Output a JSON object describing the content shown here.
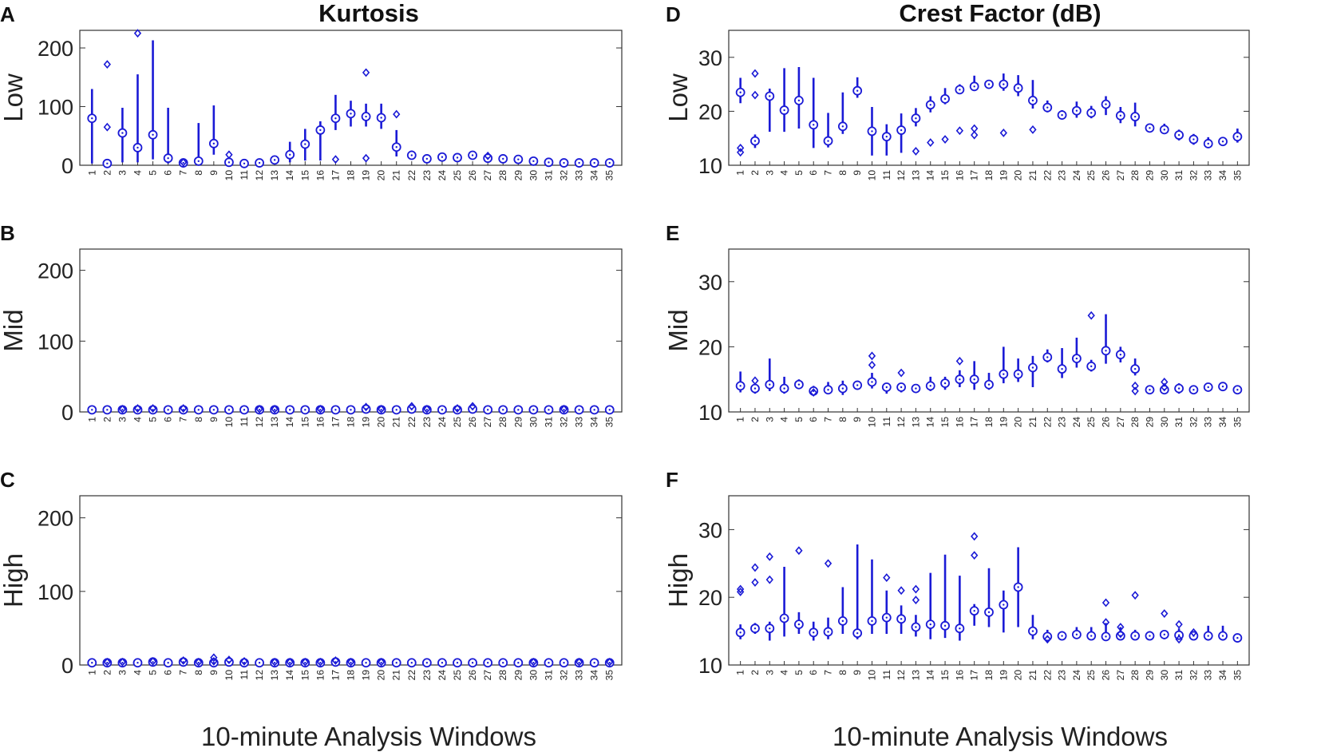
{
  "figure": {
    "xlabel": "10-minute Analysis Windows",
    "mark_color": "#1a1ad6"
  },
  "columns": [
    {
      "title": "Kurtosis"
    },
    {
      "title": "Crest Factor (dB)"
    }
  ],
  "chart_data": [
    {
      "panel": "A",
      "type": "scatter",
      "variant": "boxplot-median-whisker-outlier",
      "column_title": "Kurtosis",
      "ylabel": "Low",
      "xlabel": "",
      "ylim": [
        0,
        230
      ],
      "yticks": [
        0,
        100,
        200
      ],
      "categories": [
        "1",
        "2",
        "3",
        "4",
        "5",
        "6",
        "7",
        "8",
        "9",
        "10",
        "11",
        "12",
        "13",
        "14",
        "15",
        "16",
        "17",
        "18",
        "19",
        "20",
        "21",
        "22",
        "23",
        "24",
        "25",
        "26",
        "27",
        "28",
        "29",
        "30",
        "31",
        "32",
        "33",
        "34",
        "35"
      ],
      "median": [
        80,
        3,
        55,
        30,
        52,
        12,
        4,
        7,
        37,
        5,
        3,
        4,
        9,
        18,
        36,
        60,
        80,
        88,
        83,
        81,
        31,
        17,
        11,
        14,
        13,
        17,
        12,
        11,
        10,
        7,
        5,
        4,
        4,
        4,
        4
      ],
      "whisker_low": [
        3,
        2,
        5,
        5,
        10,
        3,
        2,
        2,
        18,
        2,
        2,
        2,
        5,
        5,
        8,
        8,
        60,
        66,
        66,
        62,
        15,
        10,
        8,
        10,
        10,
        12,
        8,
        8,
        7,
        5,
        3,
        3,
        3,
        3,
        3
      ],
      "whisker_high": [
        130,
        6,
        98,
        155,
        213,
        98,
        6,
        72,
        102,
        10,
        6,
        6,
        14,
        40,
        62,
        75,
        120,
        110,
        105,
        105,
        60,
        25,
        15,
        19,
        18,
        22,
        17,
        15,
        13,
        10,
        7,
        6,
        6,
        6,
        6
      ],
      "outliers": [
        [],
        [
          65,
          172
        ],
        [],
        [
          225
        ],
        [],
        [],
        [
          5
        ],
        [],
        [],
        [
          18
        ],
        [],
        [],
        [],
        [],
        [],
        [],
        [
          10
        ],
        [],
        [
          158,
          12
        ],
        [],
        [
          87
        ],
        [],
        [],
        [],
        [],
        [],
        [
          16
        ],
        [],
        [],
        [],
        [],
        [],
        [],
        [],
        []
      ]
    },
    {
      "panel": "B",
      "type": "scatter",
      "variant": "boxplot-median-whisker-outlier",
      "column_title": "Kurtosis",
      "ylabel": "Mid",
      "xlabel": "",
      "ylim": [
        0,
        230
      ],
      "yticks": [
        0,
        100,
        200
      ],
      "categories": [
        "1",
        "2",
        "3",
        "4",
        "5",
        "6",
        "7",
        "8",
        "9",
        "10",
        "11",
        "12",
        "13",
        "14",
        "15",
        "16",
        "17",
        "18",
        "19",
        "20",
        "21",
        "22",
        "23",
        "24",
        "25",
        "26",
        "27",
        "28",
        "29",
        "30",
        "31",
        "32",
        "33",
        "34",
        "35"
      ],
      "median": [
        3,
        3,
        3,
        3,
        3,
        3,
        3,
        3,
        3,
        3,
        3,
        3,
        3,
        3,
        3,
        3,
        3,
        3,
        4,
        3,
        3,
        4,
        3,
        3,
        3,
        4,
        3,
        3,
        3,
        3,
        3,
        3,
        3,
        3,
        3
      ],
      "whisker_low": [
        2,
        2,
        2,
        2,
        2,
        2,
        2,
        2,
        2,
        2,
        2,
        2,
        2,
        2,
        2,
        2,
        2,
        2,
        2,
        2,
        2,
        2,
        2,
        2,
        2,
        2,
        2,
        2,
        2,
        2,
        2,
        2,
        2,
        2,
        2
      ],
      "whisker_high": [
        4,
        4,
        6,
        7,
        6,
        4,
        6,
        4,
        4,
        4,
        4,
        5,
        5,
        4,
        4,
        5,
        4,
        4,
        7,
        5,
        4,
        6,
        5,
        5,
        6,
        8,
        5,
        4,
        4,
        4,
        4,
        5,
        4,
        4,
        4
      ],
      "outliers": [
        [],
        [],
        [
          4
        ],
        [
          5
        ],
        [
          5
        ],
        [],
        [
          5
        ],
        [],
        [],
        [],
        [],
        [
          4
        ],
        [
          4
        ],
        [],
        [],
        [
          4
        ],
        [],
        [],
        [
          7
        ],
        [
          4
        ],
        [],
        [
          8
        ],
        [
          4
        ],
        [],
        [
          5
        ],
        [
          8
        ],
        [],
        [],
        [],
        [],
        [],
        [
          4
        ],
        [],
        [],
        []
      ]
    },
    {
      "panel": "C",
      "type": "scatter",
      "variant": "boxplot-median-whisker-outlier",
      "column_title": "Kurtosis",
      "ylabel": "High",
      "xlabel": "10-minute Analysis Windows",
      "ylim": [
        0,
        230
      ],
      "yticks": [
        0,
        100,
        200
      ],
      "categories": [
        "1",
        "2",
        "3",
        "4",
        "5",
        "6",
        "7",
        "8",
        "9",
        "10",
        "11",
        "12",
        "13",
        "14",
        "15",
        "16",
        "17",
        "18",
        "19",
        "20",
        "21",
        "22",
        "23",
        "24",
        "25",
        "26",
        "27",
        "28",
        "29",
        "30",
        "31",
        "32",
        "33",
        "34",
        "35"
      ],
      "median": [
        3,
        3,
        3,
        3,
        4,
        3,
        4,
        3,
        3,
        4,
        3,
        3,
        3,
        3,
        3,
        3,
        4,
        3,
        3,
        3,
        3,
        3,
        3,
        3,
        3,
        3,
        3,
        3,
        3,
        3,
        3,
        3,
        3,
        3,
        3
      ],
      "whisker_low": [
        2,
        2,
        2,
        2,
        2,
        2,
        2,
        2,
        2,
        2,
        2,
        2,
        2,
        2,
        2,
        2,
        2,
        2,
        2,
        2,
        2,
        2,
        2,
        2,
        2,
        2,
        2,
        2,
        2,
        2,
        2,
        2,
        2,
        2,
        2
      ],
      "whisker_high": [
        5,
        6,
        5,
        5,
        6,
        4,
        8,
        6,
        6,
        8,
        6,
        5,
        5,
        5,
        6,
        6,
        8,
        6,
        5,
        5,
        4,
        4,
        4,
        4,
        4,
        4,
        4,
        4,
        4,
        4,
        5,
        4,
        4,
        4,
        4
      ],
      "outliers": [
        [],
        [
          4
        ],
        [
          4
        ],
        [],
        [
          5
        ],
        [],
        [
          6
        ],
        [
          4
        ],
        [
          10,
          5
        ],
        [
          7
        ],
        [
          5
        ],
        [],
        [
          4
        ],
        [
          4
        ],
        [
          4
        ],
        [
          4
        ],
        [
          6
        ],
        [
          4
        ],
        [],
        [
          4
        ],
        [],
        [],
        [],
        [],
        [],
        [],
        [],
        [],
        [],
        [
          4
        ],
        [],
        [],
        [
          4
        ],
        [],
        [
          4
        ]
      ]
    },
    {
      "panel": "D",
      "type": "scatter",
      "variant": "boxplot-median-whisker-outlier",
      "column_title": "Crest Factor (dB)",
      "ylabel": "Low",
      "xlabel": "",
      "ylim": [
        10,
        35
      ],
      "yticks": [
        10,
        20,
        30
      ],
      "categories": [
        "1",
        "2",
        "3",
        "4",
        "5",
        "6",
        "7",
        "8",
        "9",
        "10",
        "11",
        "12",
        "13",
        "14",
        "15",
        "16",
        "17",
        "18",
        "19",
        "20",
        "21",
        "22",
        "23",
        "24",
        "25",
        "26",
        "27",
        "28",
        "29",
        "30",
        "31",
        "32",
        "33",
        "34",
        "35"
      ],
      "median": [
        23.5,
        14.5,
        22.8,
        20.2,
        22,
        17.5,
        14.5,
        17.2,
        23.8,
        16.3,
        15.3,
        16.5,
        18.7,
        21.2,
        22.3,
        24,
        24.6,
        25,
        25,
        24.3,
        22,
        20.7,
        19.3,
        20.1,
        19.7,
        21.3,
        19.2,
        19,
        16.9,
        16.6,
        15.6,
        14.8,
        14,
        14.4,
        15.3
      ],
      "whisker_low": [
        21.5,
        13.2,
        16.2,
        16.2,
        16.8,
        13.2,
        13.3,
        15.8,
        22.5,
        11.8,
        11.8,
        12.3,
        17.2,
        19.8,
        21.3,
        23.3,
        23.8,
        24.2,
        23.8,
        22.8,
        20.5,
        19.8,
        18.5,
        18.8,
        18.7,
        19.3,
        17.8,
        17.2,
        16.3,
        15.8,
        14.6,
        13.8,
        13.2,
        13.6,
        14.2
      ],
      "whisker_high": [
        26.2,
        15.7,
        24.2,
        28,
        28.2,
        26.2,
        19.7,
        23.5,
        26.3,
        20.8,
        17.6,
        19.6,
        20.6,
        22.8,
        24.3,
        25,
        26.6,
        25.8,
        27,
        26.7,
        25.8,
        22,
        20.2,
        21.8,
        21,
        22.8,
        20.8,
        21.6,
        17.7,
        17.7,
        16.6,
        15.8,
        15.2,
        15.2,
        16.8
      ],
      "outliers": [
        [
          13.2,
          12.4
        ],
        [
          27,
          23
        ],
        [],
        [],
        [],
        [],
        [],
        [],
        [],
        [],
        [],
        [],
        [
          12.6
        ],
        [
          14.2
        ],
        [
          14.8
        ],
        [
          16.4
        ],
        [
          16.8,
          15.6
        ],
        [],
        [
          16
        ],
        [],
        [
          16.6
        ],
        [],
        [],
        [],
        [],
        [],
        [],
        [],
        [],
        [],
        [],
        [],
        [],
        [],
        []
      ]
    },
    {
      "panel": "E",
      "type": "scatter",
      "variant": "boxplot-median-whisker-outlier",
      "column_title": "Crest Factor (dB)",
      "ylabel": "Mid",
      "xlabel": "",
      "ylim": [
        10,
        35
      ],
      "yticks": [
        10,
        20,
        30
      ],
      "categories": [
        "1",
        "2",
        "3",
        "4",
        "5",
        "6",
        "7",
        "8",
        "9",
        "10",
        "11",
        "12",
        "13",
        "14",
        "15",
        "16",
        "17",
        "18",
        "19",
        "20",
        "21",
        "22",
        "23",
        "24",
        "25",
        "26",
        "27",
        "28",
        "29",
        "30",
        "31",
        "32",
        "33",
        "34",
        "35"
      ],
      "median": [
        14,
        13.6,
        14.2,
        13.6,
        14.2,
        13.2,
        13.4,
        13.6,
        14.1,
        14.6,
        13.8,
        13.8,
        13.6,
        14,
        14.4,
        15,
        15,
        14.2,
        15.8,
        15.8,
        16.8,
        18.4,
        16.6,
        18.2,
        17,
        19.4,
        18.8,
        16.6,
        13.4,
        13.4,
        13.6,
        13.4,
        13.8,
        13.9,
        13.4
      ],
      "whisker_low": [
        13,
        12.8,
        13.2,
        12.8,
        13.6,
        12.6,
        12.8,
        12.6,
        13.6,
        13.6,
        12.8,
        13,
        13,
        13.2,
        13.4,
        13.8,
        13.4,
        13.4,
        14.4,
        14.6,
        13.8,
        17.6,
        15.2,
        16.8,
        16.2,
        17.4,
        17.6,
        15.6,
        12.8,
        12.8,
        12.8,
        12.8,
        13.2,
        13.4,
        12.8
      ],
      "whisker_high": [
        16.2,
        14.2,
        18.2,
        15.4,
        15,
        14,
        14.6,
        14.8,
        14.8,
        16,
        14.2,
        14.4,
        14.2,
        15.4,
        15.4,
        16.4,
        17.8,
        16,
        20,
        18.2,
        18.6,
        19.6,
        19.8,
        21.4,
        18,
        25,
        20,
        18.2,
        13.8,
        14.2,
        14.4,
        13.8,
        14.2,
        14.2,
        13.8
      ],
      "outliers": [
        [],
        [
          14.8
        ],
        [],
        [],
        [],
        [
          13
        ],
        [],
        [],
        [],
        [
          18.6,
          17.2
        ],
        [],
        [
          16
        ],
        [],
        [],
        [],
        [
          17.8
        ],
        [],
        [],
        [],
        [],
        [],
        [],
        [],
        [],
        [
          24.8
        ],
        [],
        [],
        [
          13.2,
          14
        ],
        [],
        [
          14.6,
          13.8
        ],
        [],
        [],
        [],
        [],
        []
      ]
    },
    {
      "panel": "F",
      "type": "scatter",
      "variant": "boxplot-median-whisker-outlier",
      "column_title": "Crest Factor (dB)",
      "ylabel": "High",
      "xlabel": "10-minute Analysis Windows",
      "ylim": [
        10,
        35
      ],
      "yticks": [
        10,
        20,
        30
      ],
      "categories": [
        "1",
        "2",
        "3",
        "4",
        "5",
        "6",
        "7",
        "8",
        "9",
        "10",
        "11",
        "12",
        "13",
        "14",
        "15",
        "16",
        "17",
        "18",
        "19",
        "20",
        "21",
        "22",
        "23",
        "24",
        "25",
        "26",
        "27",
        "28",
        "29",
        "30",
        "31",
        "32",
        "33",
        "34",
        "35"
      ],
      "median": [
        14.8,
        15.4,
        15.4,
        16.9,
        16,
        14.8,
        14.9,
        16.5,
        14.7,
        16.5,
        17,
        16.8,
        15.6,
        16,
        15.8,
        15.4,
        18,
        17.8,
        18.9,
        21.5,
        15,
        14.2,
        14.3,
        14.5,
        14.3,
        14.2,
        14.3,
        14.3,
        14.3,
        14.5,
        14.4,
        14.3,
        14.3,
        14.3,
        14
      ],
      "whisker_low": [
        13.8,
        14.6,
        13.6,
        14.2,
        14.6,
        13.6,
        13.8,
        14.6,
        13.8,
        14.6,
        14.6,
        14.6,
        14.2,
        13.8,
        14,
        13.6,
        15.8,
        15.6,
        14.8,
        15.6,
        13.8,
        13.4,
        13.8,
        14,
        13.8,
        13.8,
        13.8,
        13.8,
        13.8,
        13.8,
        13.8,
        13.8,
        13.6,
        13.6,
        13.6
      ],
      "whisker_high": [
        16,
        16.2,
        16.4,
        24.5,
        17.8,
        16.4,
        17,
        21.5,
        27.8,
        25.6,
        21,
        18.8,
        17.4,
        23.6,
        26.3,
        23.2,
        19,
        24.3,
        21,
        27.4,
        17.4,
        15.2,
        15,
        15.6,
        15.6,
        16.2,
        15.6,
        15.2,
        15,
        15,
        15.4,
        15,
        15.8,
        15.8,
        14.2
      ],
      "outliers": [
        [
          21.2,
          20.8
        ],
        [
          24.4,
          22.2
        ],
        [
          26,
          22.6
        ],
        [],
        [
          26.9
        ],
        [],
        [
          25
        ],
        [],
        [],
        [],
        [
          22.9
        ],
        [
          21
        ],
        [
          21.2,
          19.6
        ],
        [],
        [],
        [],
        [
          29,
          26.2
        ],
        [],
        [],
        [],
        [],
        [
          13.8
        ],
        [],
        [],
        [],
        [
          19.2,
          16.3
        ],
        [
          15.6,
          14.6
        ],
        [
          20.3
        ],
        [],
        [
          17.6
        ],
        [
          16,
          13.8
        ],
        [
          14.8
        ],
        [],
        [],
        []
      ]
    }
  ]
}
